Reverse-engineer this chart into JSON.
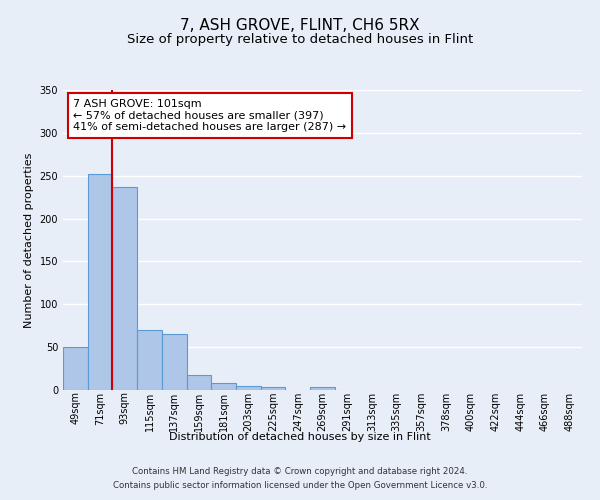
{
  "title": "7, ASH GROVE, FLINT, CH6 5RX",
  "subtitle": "Size of property relative to detached houses in Flint",
  "xlabel": "Distribution of detached houses by size in Flint",
  "ylabel": "Number of detached properties",
  "footer_line1": "Contains HM Land Registry data © Crown copyright and database right 2024.",
  "footer_line2": "Contains public sector information licensed under the Open Government Licence v3.0.",
  "bar_labels": [
    "49sqm",
    "71sqm",
    "93sqm",
    "115sqm",
    "137sqm",
    "159sqm",
    "181sqm",
    "203sqm",
    "225sqm",
    "247sqm",
    "269sqm",
    "291sqm",
    "313sqm",
    "335sqm",
    "357sqm",
    "378sqm",
    "400sqm",
    "422sqm",
    "444sqm",
    "466sqm",
    "488sqm"
  ],
  "bar_values": [
    50,
    252,
    237,
    70,
    65,
    17,
    8,
    5,
    4,
    0,
    4,
    0,
    0,
    0,
    0,
    0,
    0,
    0,
    0,
    0,
    0
  ],
  "bar_color": "#aec6e8",
  "bar_edge_color": "#5b9bd5",
  "background_color": "#e8eef7",
  "grid_color": "#ffffff",
  "red_line_x": 2.0,
  "ylim": [
    0,
    350
  ],
  "yticks": [
    0,
    50,
    100,
    150,
    200,
    250,
    300,
    350
  ],
  "annotation_title": "7 ASH GROVE: 101sqm",
  "annotation_line1": "← 57% of detached houses are smaller (397)",
  "annotation_line2": "41% of semi-detached houses are larger (287) →",
  "annotation_box_color": "#ffffff",
  "annotation_box_edge": "#cc0000",
  "title_fontsize": 11,
  "subtitle_fontsize": 9.5,
  "axis_label_fontsize": 8,
  "tick_fontsize": 7,
  "annotation_fontsize": 8
}
